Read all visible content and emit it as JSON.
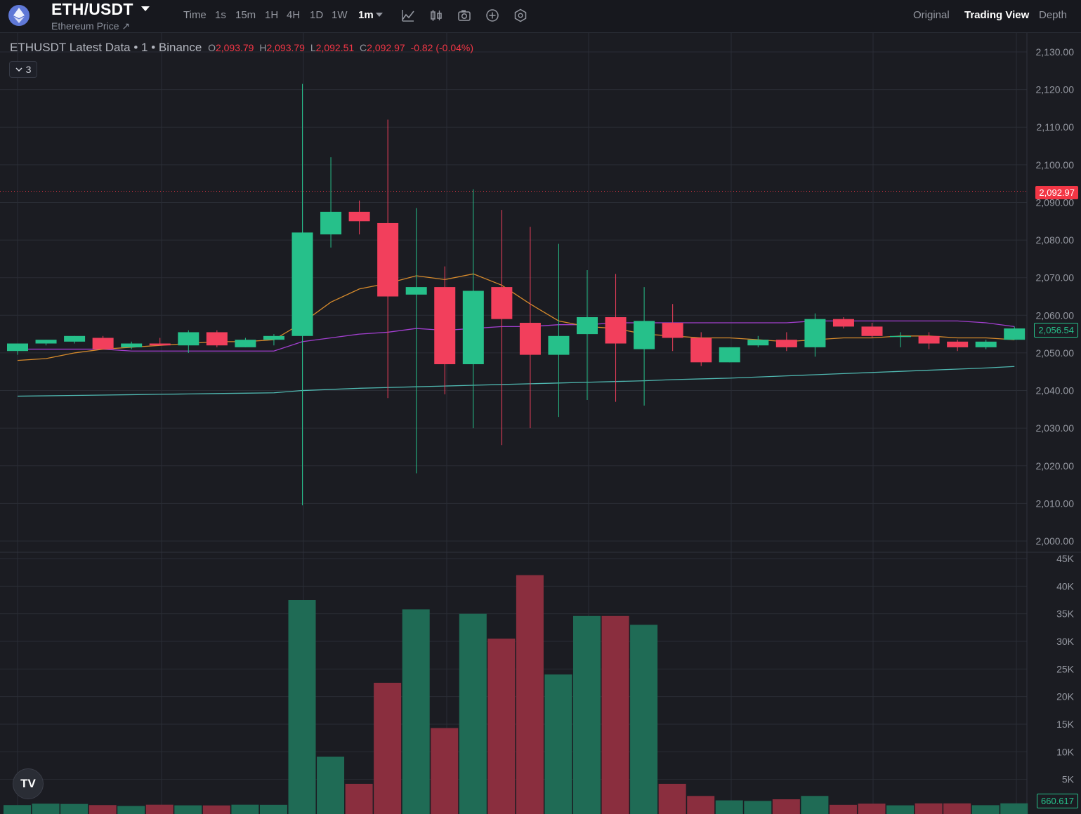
{
  "header": {
    "pair": "ETH/USDT",
    "subtitle": "Ethereum Price ↗",
    "timeframes": [
      "Time",
      "1s",
      "15m",
      "1H",
      "4H",
      "1D",
      "1W",
      "1m"
    ],
    "active_timeframe": "1m",
    "tools": [
      "indicator-icon",
      "candle-type-icon",
      "camera-icon",
      "add-icon",
      "settings-icon"
    ],
    "views": [
      "Original",
      "Trading View",
      "Depth"
    ],
    "active_view": "Trading View"
  },
  "legend": {
    "title": "ETHUSDT Latest Data • 1 • Binance",
    "o_label": "O",
    "o": "2,093.79",
    "h_label": "H",
    "h": "2,093.79",
    "l_label": "L",
    "l": "2,092.51",
    "c_label": "C",
    "c": "2,092.97",
    "change": "-0.82 (-0.04%)",
    "indicators_count": "3"
  },
  "price_tags": {
    "last": "2,092.97",
    "ma": "2,056.54",
    "volume": "660.617"
  },
  "colors": {
    "up": "#26c08a",
    "down": "#f23f5c",
    "vol_up": "#1f6b55",
    "vol_down": "#8a2e3e",
    "ma_orange": "#d68a2c",
    "ma_purple": "#a23fcf",
    "ma_teal": "#4fb7b0"
  },
  "chart_data": {
    "type": "candlestick",
    "y_ticks": [
      "2,130.00",
      "2,120.00",
      "2,110.00",
      "2,100.00",
      "2,090.00",
      "2,080.00",
      "2,070.00",
      "2,060.00",
      "2,050.00",
      "2,040.00",
      "2,030.00",
      "2,020.00",
      "2,010.00",
      "2,000.00"
    ],
    "ylim": [
      2000,
      2130
    ],
    "vol_ticks": [
      "45K",
      "40K",
      "35K",
      "30K",
      "25K",
      "20K",
      "15K",
      "10K",
      "5K"
    ],
    "vol_ylim": [
      0,
      45000
    ],
    "candles": [
      {
        "o": 2050.5,
        "h": 2052.5,
        "l": 2049.5,
        "c": 2052.5
      },
      {
        "o": 2052.5,
        "h": 2053.5,
        "l": 2052.0,
        "c": 2053.5
      },
      {
        "o": 2053.0,
        "h": 2054.5,
        "l": 2052.5,
        "c": 2054.5
      },
      {
        "o": 2054.0,
        "h": 2054.5,
        "l": 2051.0,
        "c": 2051.0
      },
      {
        "o": 2051.5,
        "h": 2053.0,
        "l": 2051.0,
        "c": 2052.5
      },
      {
        "o": 2052.5,
        "h": 2054.0,
        "l": 2052.0,
        "c": 2052.0
      },
      {
        "o": 2052.0,
        "h": 2056.0,
        "l": 2050.0,
        "c": 2055.5
      },
      {
        "o": 2055.5,
        "h": 2056.0,
        "l": 2051.5,
        "c": 2052.0
      },
      {
        "o": 2051.5,
        "h": 2054.0,
        "l": 2051.5,
        "c": 2053.5
      },
      {
        "o": 2053.5,
        "h": 2055.0,
        "l": 2052.0,
        "c": 2054.5
      },
      {
        "o": 2054.5,
        "h": 2121.5,
        "l": 2009.5,
        "c": 2082.0
      },
      {
        "o": 2081.5,
        "h": 2102.0,
        "l": 2078.0,
        "c": 2087.5
      },
      {
        "o": 2087.5,
        "h": 2090.5,
        "l": 2081.5,
        "c": 2085.0
      },
      {
        "o": 2084.5,
        "h": 2112.0,
        "l": 2038.0,
        "c": 2065.0
      },
      {
        "o": 2065.5,
        "h": 2088.5,
        "l": 2018.0,
        "c": 2067.5
      },
      {
        "o": 2067.5,
        "h": 2073.0,
        "l": 2039.0,
        "c": 2047.0
      },
      {
        "o": 2047.0,
        "h": 2093.5,
        "l": 2030.0,
        "c": 2066.5
      },
      {
        "o": 2067.5,
        "h": 2088.0,
        "l": 2025.5,
        "c": 2059.0
      },
      {
        "o": 2058.0,
        "h": 2083.5,
        "l": 2030.0,
        "c": 2049.5
      },
      {
        "o": 2049.5,
        "h": 2079.0,
        "l": 2033.0,
        "c": 2054.5
      },
      {
        "o": 2055.0,
        "h": 2072.0,
        "l": 2037.5,
        "c": 2059.5
      },
      {
        "o": 2059.5,
        "h": 2071.0,
        "l": 2037.0,
        "c": 2052.5
      },
      {
        "o": 2051.0,
        "h": 2067.5,
        "l": 2036.0,
        "c": 2058.5
      },
      {
        "o": 2058.0,
        "h": 2063.0,
        "l": 2050.5,
        "c": 2054.0
      },
      {
        "o": 2054.0,
        "h": 2055.5,
        "l": 2046.5,
        "c": 2047.5
      },
      {
        "o": 2047.5,
        "h": 2051.5,
        "l": 2047.5,
        "c": 2051.5
      },
      {
        "o": 2052.0,
        "h": 2054.5,
        "l": 2051.5,
        "c": 2053.5
      },
      {
        "o": 2053.5,
        "h": 2055.5,
        "l": 2050.5,
        "c": 2051.5
      },
      {
        "o": 2051.5,
        "h": 2060.5,
        "l": 2049.0,
        "c": 2059.0
      },
      {
        "o": 2059.0,
        "h": 2059.5,
        "l": 2056.5,
        "c": 2057.0
      },
      {
        "o": 2057.0,
        "h": 2058.0,
        "l": 2054.0,
        "c": 2054.5
      },
      {
        "o": 2054.5,
        "h": 2055.5,
        "l": 2051.5,
        "c": 2054.5
      },
      {
        "o": 2054.5,
        "h": 2055.5,
        "l": 2051.0,
        "c": 2052.5
      },
      {
        "o": 2053.0,
        "h": 2053.5,
        "l": 2050.5,
        "c": 2051.5
      },
      {
        "o": 2051.5,
        "h": 2053.5,
        "l": 2051.0,
        "c": 2053.0
      },
      {
        "o": 2053.5,
        "h": 2057.0,
        "l": 2053.5,
        "c": 2056.5
      }
    ],
    "volumes": [
      350,
      600,
      550,
      350,
      180,
      420,
      300,
      280,
      420,
      400,
      37500,
      9100,
      4200,
      22500,
      35800,
      14300,
      35000,
      30500,
      42000,
      24000,
      34600,
      34600,
      33000,
      4200,
      2000,
      1200,
      1100,
      1400,
      2000,
      400,
      600,
      300,
      650,
      650,
      330,
      660
    ],
    "ma_orange": [
      2048.0,
      2048.5,
      2050.0,
      2051.0,
      2051.5,
      2052.0,
      2052.5,
      2053.0,
      2053.0,
      2053.5,
      2058.0,
      2063.5,
      2067.0,
      2068.5,
      2070.5,
      2069.5,
      2071.0,
      2068.0,
      2063.0,
      2058.5,
      2057.0,
      2056.5,
      2055.0,
      2054.5,
      2054.0,
      2054.0,
      2053.5,
      2053.0,
      2053.5,
      2054.0,
      2054.0,
      2054.5,
      2054.5,
      2054.0,
      2054.0,
      2053.5
    ],
    "ma_purple": [
      2051.0,
      2051.0,
      2051.0,
      2051.0,
      2050.5,
      2050.5,
      2050.5,
      2050.5,
      2050.5,
      2050.5,
      2053.0,
      2054.0,
      2055.0,
      2055.5,
      2056.5,
      2056.0,
      2056.5,
      2057.0,
      2057.0,
      2057.5,
      2057.5,
      2058.0,
      2058.0,
      2058.0,
      2058.0,
      2058.0,
      2058.0,
      2058.0,
      2058.5,
      2058.5,
      2058.5,
      2058.5,
      2058.5,
      2058.5,
      2058.0,
      2057.0
    ],
    "ma_teal": [
      2038.5,
      2038.6,
      2038.7,
      2038.8,
      2038.9,
      2039.0,
      2039.1,
      2039.2,
      2039.3,
      2039.4,
      2040.0,
      2040.3,
      2040.6,
      2040.8,
      2041.0,
      2041.2,
      2041.4,
      2041.6,
      2041.8,
      2042.0,
      2042.2,
      2042.4,
      2042.6,
      2042.9,
      2043.1,
      2043.3,
      2043.6,
      2043.9,
      2044.2,
      2044.5,
      2044.8,
      2045.1,
      2045.4,
      2045.7,
      2046.0,
      2046.4
    ]
  }
}
